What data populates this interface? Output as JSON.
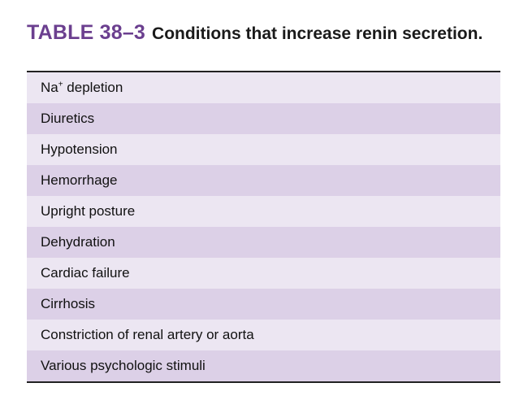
{
  "table": {
    "label": "TABLE 38–3",
    "title": "Conditions that increase renin secretion.",
    "colors": {
      "label": "#6b3f8f",
      "row_light": "#ece6f2",
      "row_dark": "#dcd0e7",
      "rule": "#222222"
    },
    "first_row": {
      "base": "Na",
      "superscript": "+",
      "rest": " depletion"
    },
    "rows": [
      "Diuretics",
      "Hypotension",
      "Hemorrhage",
      "Upright posture",
      "Dehydration",
      "Cardiac failure",
      "Cirrhosis",
      "Constriction of renal artery or aorta",
      "Various psychologic stimuli"
    ]
  }
}
